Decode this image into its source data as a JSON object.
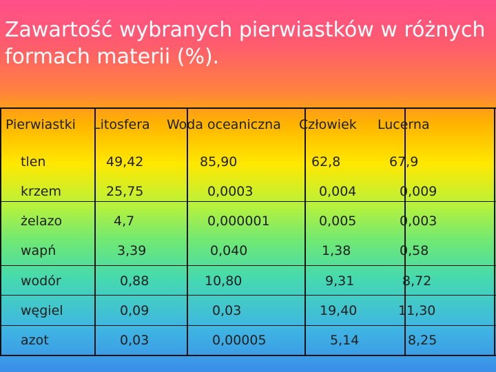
{
  "slide": {
    "title_line1": "Zawartość wybranych pierwiastków w różnych",
    "title_line2": "formach materii (%)."
  },
  "table": {
    "headers": [
      "Pierwiastki",
      "Litosfera",
      "Woda oceaniczna",
      "Człowiek",
      "Lucerna"
    ],
    "rows": [
      [
        "tlen",
        "49,42",
        "85,90",
        "62,8",
        "67,9"
      ],
      [
        "krzem",
        "25,75",
        "0,0003",
        "0,004",
        "0,009"
      ],
      [
        "żelazo",
        "4,7",
        "0,000001",
        "0,005",
        "0,003"
      ],
      [
        "wapń",
        "3,39",
        "0,040",
        "1,38",
        "0,58"
      ],
      [
        "wodór",
        "0,88",
        "10,80",
        "9,31",
        "8,72"
      ],
      [
        "węgiel",
        "0,09",
        "0,03",
        "19,40",
        "11,30"
      ],
      [
        "azot",
        "0,03",
        "0,00005",
        "5,14",
        "8,25"
      ]
    ]
  }
}
